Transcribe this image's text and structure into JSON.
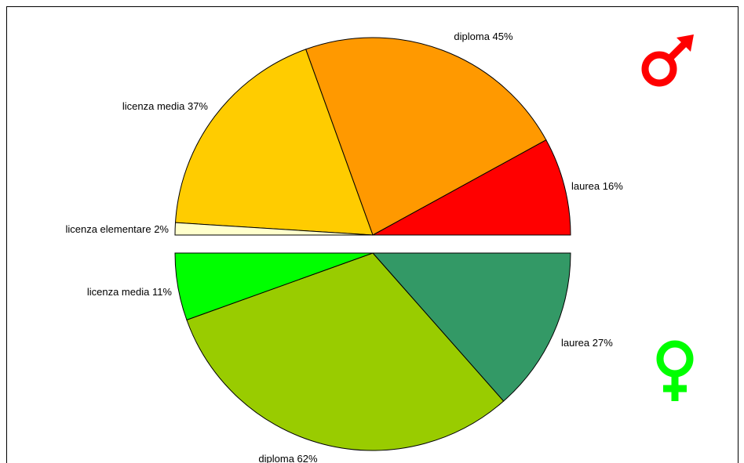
{
  "chart_data": [
    {
      "type": "pie",
      "half": "upper",
      "title": "",
      "gender_symbol": "male-symbol-icon",
      "gender_symbol_color": "#ff0000",
      "slices": [
        {
          "label": "laurea 16%",
          "name": "laurea",
          "value": 16,
          "color": "#ff0000"
        },
        {
          "label": "diploma 45%",
          "name": "diploma",
          "value": 45,
          "color": "#ff9900"
        },
        {
          "label": "licenza media 37%",
          "name": "licenza media",
          "value": 37,
          "color": "#ffcc00"
        },
        {
          "label": "licenza elementare 2%",
          "name": "licenza elementare",
          "value": 2,
          "color": "#ffffcc"
        }
      ]
    },
    {
      "type": "pie",
      "half": "lower",
      "title": "",
      "gender_symbol": "female-symbol-icon",
      "gender_symbol_color": "#00ff00",
      "slices": [
        {
          "label": "laurea 27%",
          "name": "laurea",
          "value": 27,
          "color": "#339966"
        },
        {
          "label": "diploma 62%",
          "name": "diploma",
          "value": 62,
          "color": "#99cc00"
        },
        {
          "label": "licenza media 11%",
          "name": "licenza media",
          "value": 11,
          "color": "#00ff00"
        }
      ]
    }
  ]
}
